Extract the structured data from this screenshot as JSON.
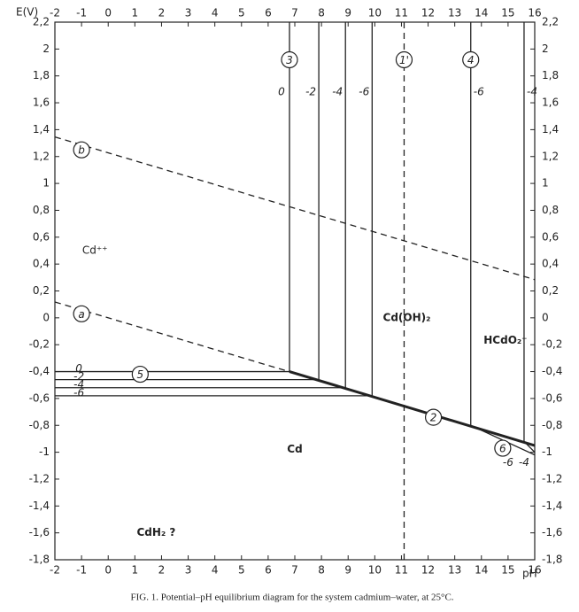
{
  "chart_data": {
    "type": "pourbaix",
    "caption": "FIG. 1. Potential–pH equilibrium diagram for the system cadmium–water, at 25°C.",
    "y_label": "E(V)",
    "x_label": "pH",
    "xlim": [
      -2,
      16
    ],
    "ylim": [
      -1.8,
      2.2
    ],
    "xticks": [
      -2,
      -1,
      0,
      1,
      2,
      3,
      4,
      5,
      6,
      7,
      8,
      9,
      10,
      11,
      12,
      13,
      14,
      15,
      16
    ],
    "yticks": [
      {
        "value": -1.8,
        "label": "-1,8"
      },
      {
        "value": -1.6,
        "label": "-1,6"
      },
      {
        "value": -1.4,
        "label": "-1,4"
      },
      {
        "value": -1.2,
        "label": "-1,2"
      },
      -1,
      {
        "value": -0.8,
        "label": "-0,8"
      },
      {
        "value": -0.6,
        "label": "-0,6"
      },
      {
        "value": -0.4,
        "label": "-0,4"
      },
      {
        "value": -0.2,
        "label": "-0,2"
      },
      0,
      {
        "value": 0.2,
        "label": "0,2"
      },
      {
        "value": 0.4,
        "label": "0,4"
      },
      {
        "value": 0.6,
        "label": "0,6"
      },
      {
        "value": 0.8,
        "label": "0,8"
      },
      1,
      {
        "value": 1.2,
        "label": "1,2"
      },
      {
        "value": 1.4,
        "label": "1,4"
      },
      {
        "value": 1.6,
        "label": "1,6"
      },
      {
        "value": 1.8,
        "label": "1,8"
      },
      2,
      {
        "value": 2.2,
        "label": "2,2"
      }
    ],
    "color": "#222222",
    "lines": [
      {
        "x": [
          -2,
          16
        ],
        "y": [
          1.346,
          0.284
        ],
        "style": "dashed"
      },
      {
        "x": [
          -2,
          6.8
        ],
        "y": [
          0.118,
          -0.401
        ],
        "style": "dashed"
      },
      {
        "x": [
          6.8,
          16
        ],
        "y": [
          -0.4,
          -0.95
        ],
        "style": "thick"
      },
      {
        "x": [
          -2,
          6.8
        ],
        "y": [
          -0.4,
          -0.4
        ],
        "style": "solid",
        "label": "0"
      },
      {
        "x": [
          -2,
          7.9
        ],
        "y": [
          -0.46,
          -0.46
        ],
        "style": "solid",
        "label": "-2"
      },
      {
        "x": [
          -2,
          8.9
        ],
        "y": [
          -0.52,
          -0.52
        ],
        "style": "solid",
        "label": "-4"
      },
      {
        "x": [
          -2,
          9.9
        ],
        "y": [
          -0.58,
          -0.58
        ],
        "style": "solid",
        "label": "-6"
      },
      {
        "x": [
          6.8,
          6.8
        ],
        "y": [
          -0.4,
          2.2
        ],
        "style": "solid",
        "label": "0"
      },
      {
        "x": [
          7.9,
          7.9
        ],
        "y": [
          -0.46,
          2.2
        ],
        "style": "solid",
        "label": "-2"
      },
      {
        "x": [
          8.9,
          8.9
        ],
        "y": [
          -0.52,
          2.2
        ],
        "style": "solid",
        "label": "-4"
      },
      {
        "x": [
          9.9,
          9.9
        ],
        "y": [
          -0.58,
          2.2
        ],
        "style": "solid",
        "label": "-6"
      },
      {
        "x": [
          13.6,
          13.6
        ],
        "y": [
          -0.8,
          2.2
        ],
        "style": "solid",
        "label": "-6"
      },
      {
        "x": [
          15.6,
          15.6
        ],
        "y": [
          -0.92,
          2.2
        ],
        "style": "solid",
        "label": "-4"
      },
      {
        "x": [
          11.1,
          11.1
        ],
        "y": [
          -1.8,
          2.2
        ],
        "style": "dashed"
      },
      {
        "x": [
          13.6,
          16
        ],
        "y": [
          -0.8,
          -1.02
        ],
        "style": "solid",
        "label": "-6"
      },
      {
        "x": [
          15.6,
          16
        ],
        "y": [
          -0.92,
          -1.0
        ],
        "style": "solid",
        "label": "-4"
      }
    ],
    "circled_labels": [
      "b",
      "a",
      "2",
      "3",
      "1'",
      "4",
      "5",
      "6"
    ],
    "regions": [
      "Cd⁺⁺",
      "Cd(OH)₂",
      "HCdO₂⁻",
      "Cd",
      "CdH₂ ?"
    ]
  }
}
